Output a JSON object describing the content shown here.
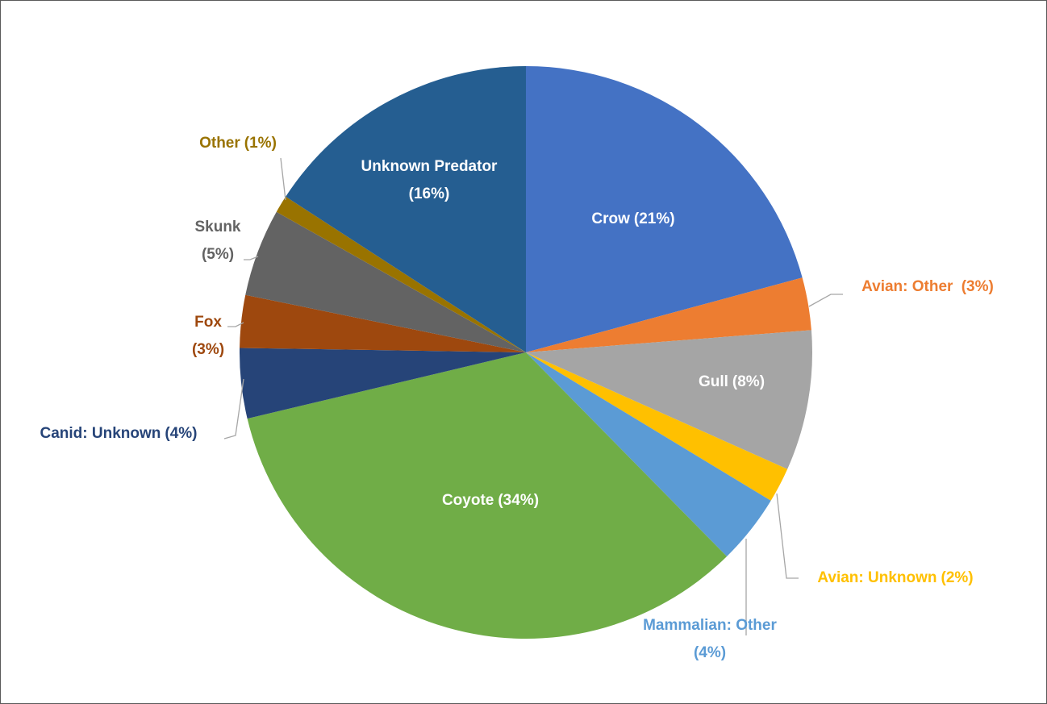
{
  "chart_data": {
    "type": "pie",
    "categories": [
      "Crow",
      "Avian: Other",
      "Gull",
      "Avian: Unknown",
      "Mammalian: Other",
      "Coyote",
      "Canid: Unknown",
      "Fox",
      "Skunk",
      "Other",
      "Unknown Predator"
    ],
    "values": [
      21,
      3,
      8,
      2,
      4,
      34,
      4,
      3,
      5,
      1,
      16
    ],
    "value_labels": [
      "(21%)",
      " (3%)",
      "(8%)",
      "(2%)",
      "(4%)",
      "(34%)",
      "(4%)",
      "(3%)",
      "(5%)",
      "(1%)",
      "(16%)"
    ],
    "colors": [
      "#4472c4",
      "#ed7d31",
      "#a5a5a5",
      "#ffc000",
      "#5b9bd5",
      "#70ad47",
      "#264478",
      "#9e480e",
      "#636363",
      "#997300",
      "#255e91"
    ]
  }
}
